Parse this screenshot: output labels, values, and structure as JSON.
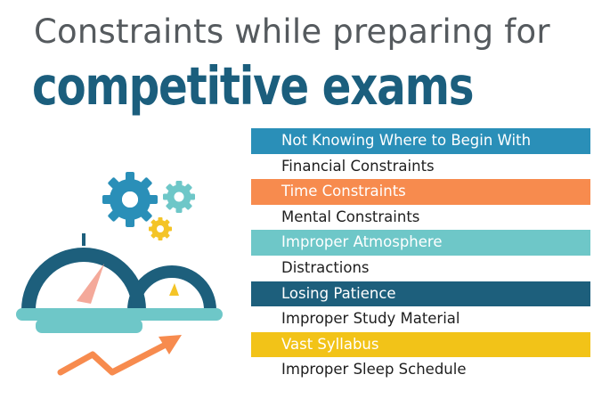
{
  "title": {
    "line1": "Constraints while preparing for",
    "line2": "competitive exams"
  },
  "colors": {
    "title_line1": "#555a5e",
    "title_line2": "#1b5e7d",
    "blue": "#2a8fb8",
    "orange": "#f78b4e",
    "teal": "#6ec7c8",
    "navy": "#1d5f7c",
    "yellow": "#f2c318",
    "gear_yellow": "#f4c427",
    "needle": "#f4a99a"
  },
  "constraints": [
    {
      "label": "Not Knowing Where to Begin With",
      "bg": "#2a8fb8"
    },
    {
      "label": "Financial Constraints",
      "bg": ""
    },
    {
      "label": "Time Constraints",
      "bg": "#f78b4e"
    },
    {
      "label": "Mental Constraints",
      "bg": ""
    },
    {
      "label": "Improper Atmosphere",
      "bg": "#6ec7c8"
    },
    {
      "label": "Distractions",
      "bg": ""
    },
    {
      "label": "Losing Patience",
      "bg": "#1d5f7c"
    },
    {
      "label": "Improper Study Material",
      "bg": ""
    },
    {
      "label": "Vast Syllabus",
      "bg": "#f2c318"
    },
    {
      "label": "Improper Sleep Schedule",
      "bg": ""
    }
  ],
  "illustration": {
    "icons": [
      "gear-icon",
      "gear-icon",
      "gear-icon",
      "gauge-icon",
      "trend-arrow-icon"
    ]
  }
}
